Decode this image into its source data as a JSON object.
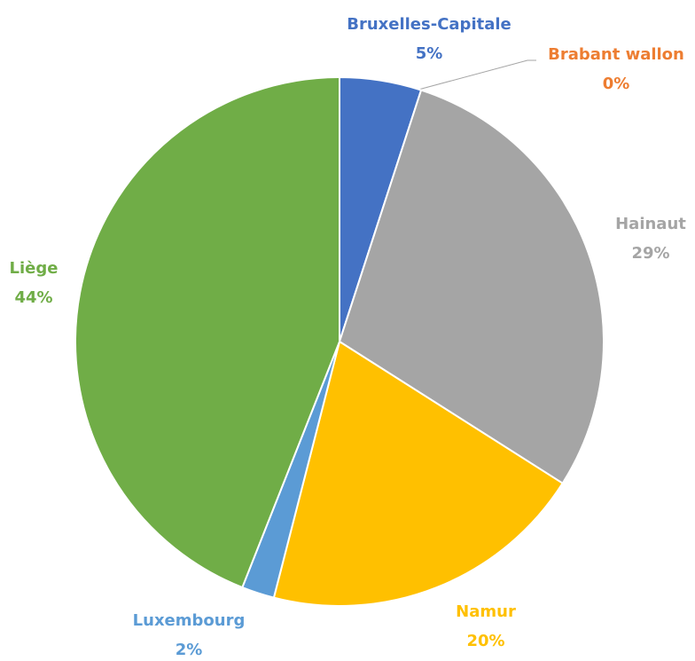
{
  "chart_data": {
    "type": "pie",
    "categories": [
      "Bruxelles-Capitale",
      "Brabant wallon",
      "Hainaut",
      "Namur",
      "Luxembourg",
      "Liège"
    ],
    "values": [
      5,
      0,
      29,
      20,
      2,
      44
    ],
    "value_labels": [
      "5%",
      "0%",
      "29%",
      "20%",
      "2%",
      "44%"
    ],
    "colors": [
      "#4472c4",
      "#ed7d31",
      "#a5a5a5",
      "#ffc000",
      "#5b9bd5",
      "#70ad47"
    ]
  }
}
